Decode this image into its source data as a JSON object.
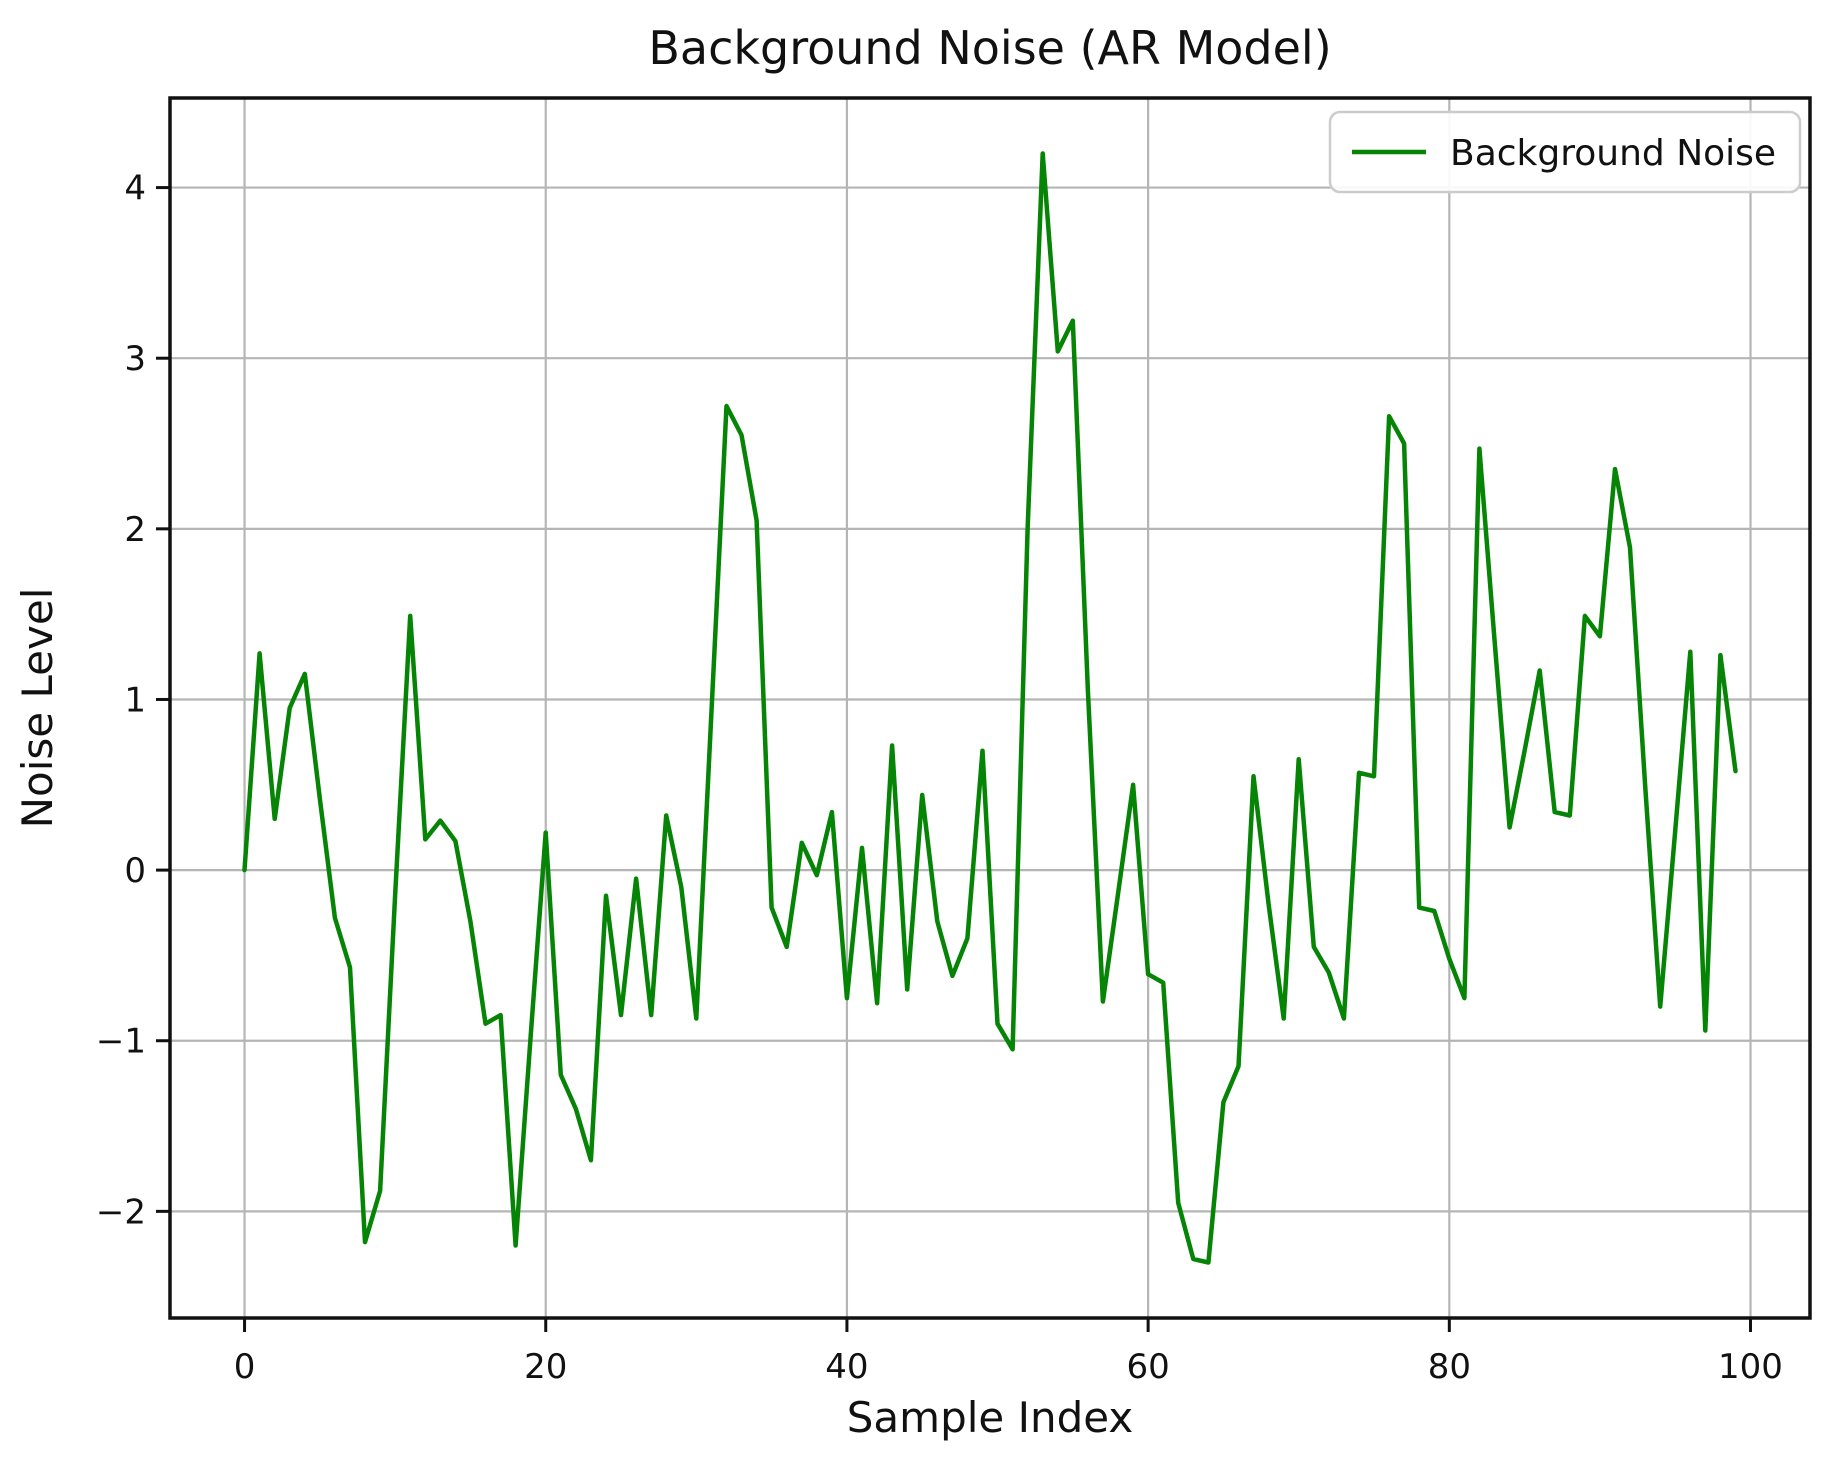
{
  "chart_data": {
    "type": "line",
    "title": "Background Noise (AR Model)",
    "xlabel": "Sample Index",
    "ylabel": "Noise Level",
    "x_start": 0,
    "x_step": 1,
    "series": [
      {
        "name": "Background Noise",
        "color": "#068406",
        "values": [
          0.0,
          1.27,
          0.3,
          0.95,
          1.15,
          0.42,
          -0.28,
          -0.57,
          -2.18,
          -1.88,
          -0.15,
          1.49,
          0.18,
          0.29,
          0.17,
          -0.3,
          -0.9,
          -0.85,
          -2.2,
          -0.97,
          0.22,
          -1.2,
          -1.4,
          -1.7,
          -0.15,
          -0.85,
          -0.05,
          -0.85,
          0.32,
          -0.1,
          -0.87,
          0.92,
          2.72,
          2.55,
          2.05,
          -0.22,
          -0.45,
          0.16,
          -0.03,
          0.34,
          -0.75,
          0.13,
          -0.78,
          0.73,
          -0.7,
          0.44,
          -0.3,
          -0.62,
          -0.4,
          0.7,
          -0.9,
          -1.05,
          2.0,
          4.2,
          3.04,
          3.22,
          1.05,
          -0.77,
          -0.14,
          0.5,
          -0.61,
          -0.66,
          -1.95,
          -2.28,
          -2.3,
          -1.36,
          -1.15,
          0.55,
          -0.2,
          -0.87,
          0.65,
          -0.45,
          -0.6,
          -0.87,
          0.57,
          0.55,
          2.66,
          2.5,
          -0.22,
          -0.24,
          -0.52,
          -0.75,
          2.47,
          1.35,
          0.25,
          0.7,
          1.17,
          0.34,
          0.32,
          1.49,
          1.37,
          2.35,
          1.89,
          0.5,
          -0.8,
          0.23,
          1.28,
          -0.94,
          1.26,
          0.58
        ]
      }
    ],
    "xticks": [
      0,
      20,
      40,
      60,
      80,
      100
    ],
    "xtick_labels": [
      "0",
      "20",
      "40",
      "60",
      "80",
      "100"
    ],
    "yticks": [
      -2,
      -1,
      0,
      1,
      2,
      3,
      4
    ],
    "ytick_labels": [
      "−2",
      "−1",
      "0",
      "1",
      "2",
      "3",
      "4"
    ],
    "grid": true,
    "legend_position": "upper right",
    "x_margin_frac": 0.05,
    "y_margin_frac": 0.05,
    "colors": {
      "line": "#068406",
      "grid": "#b5b5b5",
      "spine": "#111111",
      "text": "#111111",
      "legend_border": "#cccccc",
      "legend_background": "#ffffff"
    }
  }
}
